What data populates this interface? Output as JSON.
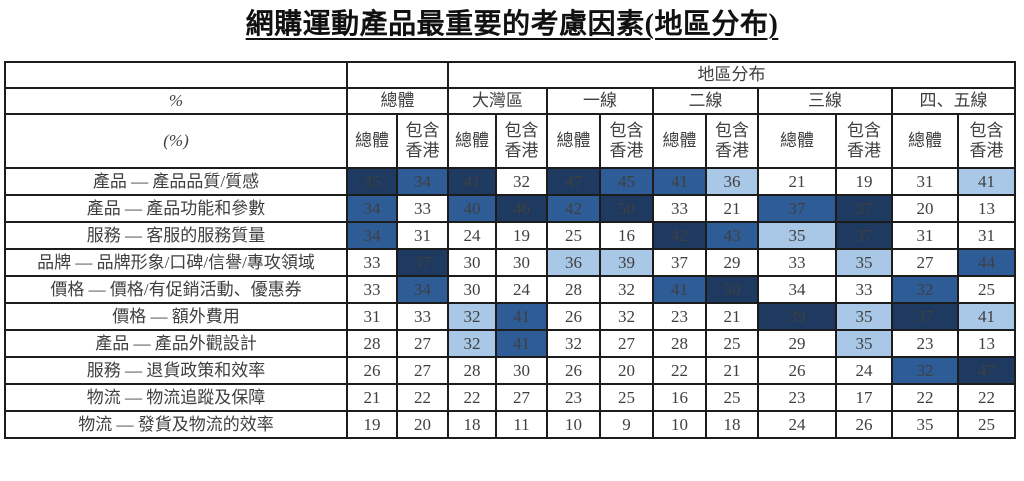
{
  "title": "網購運動產品最重要的考慮因素(地區分布)",
  "colors": {
    "highlight_dark": "#1f3a60",
    "highlight_medium": "#2e5c97",
    "highlight_light": "#a9c7e6",
    "border": "#1c1c1c"
  },
  "table": {
    "region_header": "地區分布",
    "unit_row_percent": "%",
    "unit_row_percent_paren": "(%)",
    "groups": [
      {
        "label": "總體"
      },
      {
        "label": "大灣區"
      },
      {
        "label": "一線"
      },
      {
        "label": "二線"
      },
      {
        "label": "三線"
      },
      {
        "label": "四、五線"
      }
    ],
    "subheaders": {
      "overall": "總體",
      "incl_hk": "包含\n香港"
    },
    "rows": [
      {
        "label": "產品 — 產品品質/質感",
        "values": [
          35,
          34,
          41,
          32,
          47,
          45,
          41,
          36,
          21,
          19,
          31,
          41
        ],
        "styles": [
          "dark",
          "medium",
          "dark",
          "plain",
          "dark",
          "medium",
          "medium",
          "light",
          "plain",
          "plain",
          "plain",
          "light"
        ]
      },
      {
        "label": "產品 — 產品功能和參數",
        "values": [
          34,
          33,
          40,
          46,
          42,
          50,
          33,
          21,
          37,
          37,
          20,
          13
        ],
        "styles": [
          "medium",
          "plain",
          "medium",
          "dark",
          "medium",
          "dark",
          "plain",
          "plain",
          "medium",
          "dark",
          "plain",
          "plain"
        ]
      },
      {
        "label": "服務 — 客服的服務質量",
        "values": [
          34,
          31,
          24,
          19,
          25,
          16,
          42,
          43,
          35,
          37,
          31,
          31
        ],
        "styles": [
          "medium",
          "plain",
          "plain",
          "plain",
          "plain",
          "plain",
          "dark",
          "medium",
          "light",
          "dark",
          "plain",
          "plain"
        ]
      },
      {
        "label": "品牌 — 品牌形象/口碑/信譽/專攻領域",
        "values": [
          33,
          37,
          30,
          30,
          36,
          39,
          37,
          29,
          33,
          35,
          27,
          44
        ],
        "styles": [
          "plain",
          "dark",
          "plain",
          "plain",
          "light",
          "light",
          "plain",
          "plain",
          "plain",
          "light",
          "plain",
          "medium"
        ]
      },
      {
        "label": "價格 — 價格/有促銷活動、優惠券",
        "values": [
          33,
          34,
          30,
          24,
          28,
          32,
          41,
          50,
          34,
          33,
          32,
          25
        ],
        "styles": [
          "plain",
          "medium",
          "plain",
          "plain",
          "plain",
          "plain",
          "medium",
          "dark",
          "plain",
          "plain",
          "medium",
          "plain"
        ]
      },
      {
        "label": "價格 — 額外費用",
        "values": [
          31,
          33,
          32,
          41,
          26,
          32,
          23,
          21,
          39,
          35,
          37,
          41
        ],
        "styles": [
          "plain",
          "plain",
          "light",
          "medium",
          "plain",
          "plain",
          "plain",
          "plain",
          "dark",
          "light",
          "dark",
          "light"
        ]
      },
      {
        "label": "產品 — 產品外觀設計",
        "values": [
          28,
          27,
          32,
          41,
          32,
          27,
          28,
          25,
          29,
          35,
          23,
          13
        ],
        "styles": [
          "plain",
          "plain",
          "light",
          "medium",
          "plain",
          "plain",
          "plain",
          "plain",
          "plain",
          "light",
          "plain",
          "plain"
        ]
      },
      {
        "label": "服務 — 退貨政策和效率",
        "values": [
          26,
          27,
          28,
          30,
          26,
          20,
          22,
          21,
          26,
          24,
          32,
          47
        ],
        "styles": [
          "plain",
          "plain",
          "plain",
          "plain",
          "plain",
          "plain",
          "plain",
          "plain",
          "plain",
          "plain",
          "medium",
          "dark"
        ]
      },
      {
        "label": "物流 — 物流追蹤及保障",
        "values": [
          21,
          22,
          22,
          27,
          23,
          25,
          16,
          25,
          23,
          17,
          22,
          22
        ],
        "styles": [
          "plain",
          "plain",
          "plain",
          "plain",
          "plain",
          "plain",
          "plain",
          "plain",
          "plain",
          "plain",
          "plain",
          "plain"
        ]
      },
      {
        "label": "物流 — 發貨及物流的效率",
        "values": [
          19,
          20,
          18,
          11,
          10,
          9,
          10,
          18,
          24,
          26,
          35,
          25
        ],
        "styles": [
          "plain",
          "plain",
          "plain",
          "plain",
          "plain",
          "plain",
          "plain",
          "plain",
          "plain",
          "plain",
          "plain",
          "plain"
        ]
      }
    ]
  }
}
